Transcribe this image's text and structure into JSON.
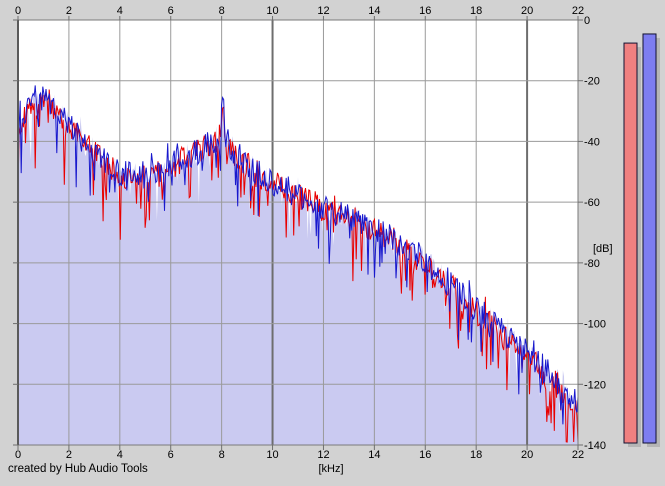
{
  "page": {
    "background": "#d2d2d2",
    "footer_credit": "created by Hub Audio Tools"
  },
  "chart_data": {
    "type": "line",
    "title": "",
    "xlabel": "[kHz]",
    "ylabel": "[dB]",
    "x_range": [
      0,
      22
    ],
    "y_range": [
      -140,
      0
    ],
    "x_ticks": [
      0,
      2,
      4,
      6,
      8,
      10,
      12,
      14,
      16,
      18,
      20,
      22
    ],
    "x_tick_labels": [
      "0",
      "2",
      "4",
      "6",
      "8",
      "10",
      "12",
      "14",
      "16",
      "18",
      "20",
      "22"
    ],
    "y_ticks": [
      0,
      -20,
      -40,
      -60,
      -80,
      -100,
      -120,
      -140
    ],
    "y_tick_labels": [
      "0",
      "-20",
      "-40",
      "-60",
      "-80",
      "-100",
      "-120",
      "-140"
    ],
    "grid": true,
    "emphasized_x_gridlines": [
      10,
      20
    ],
    "plot_bg": "#ffffff",
    "grid_color": "#9a9a9a",
    "grid_major_color": "#6e6e6e",
    "border_color": "#7a7a7a",
    "x_step_khz": 0.5,
    "series": [
      {
        "name": "red",
        "color": "#e80000",
        "envelope_db": [
          -36,
          -30,
          -27,
          -30,
          -36,
          -40,
          -44,
          -47,
          -51,
          -52,
          -52,
          -51,
          -48,
          -46,
          -44,
          -41,
          -38,
          -44,
          -48,
          -51,
          -54,
          -56,
          -58,
          -60,
          -62,
          -64,
          -65,
          -67,
          -69,
          -71,
          -74,
          -77,
          -81,
          -85,
          -88,
          -92,
          -96,
          -100,
          -104,
          -108,
          -111,
          -115,
          -119,
          -123,
          -128
        ],
        "jitter_db": 4.5,
        "spike_prob": 0.15,
        "spike_depth_db": 15,
        "seed": 7
      },
      {
        "name": "blue",
        "color": "#1818cd",
        "fill_color": "#cacaf1",
        "fill_seed": 101,
        "envelope_db": [
          -34.5,
          -28.5,
          -25.5,
          -28.5,
          -35,
          -39.5,
          -43.5,
          -46.5,
          -50.5,
          -51.5,
          -51.5,
          -50.5,
          -47.5,
          -45.5,
          -43.5,
          -40.5,
          -37.5,
          -43.5,
          -47.5,
          -50.5,
          -53.5,
          -55.5,
          -57.5,
          -59.5,
          -61.5,
          -63.5,
          -64.5,
          -66.5,
          -68.5,
          -70.5,
          -73.5,
          -76,
          -79.5,
          -83.5,
          -86.5,
          -90.5,
          -94.5,
          -98.5,
          -102.5,
          -106.5,
          -109.5,
          -113.5,
          -117.5,
          -121.5,
          -127
        ],
        "jitter_db": 4.5,
        "spike_prob": 0.11,
        "spike_depth_db": 12,
        "seed": 23
      }
    ],
    "peaks": [
      {
        "x": 8.05,
        "db": -24,
        "slope_db_per_khz": 150
      }
    ],
    "meters": [
      {
        "name": "left-level",
        "color": "#f08080",
        "value_db": -7.6
      },
      {
        "name": "right-level",
        "color": "#7d7df0",
        "value_db": -4.6
      }
    ],
    "meter_outline": "#101030",
    "meter_shadow": "#b5b5b5"
  }
}
